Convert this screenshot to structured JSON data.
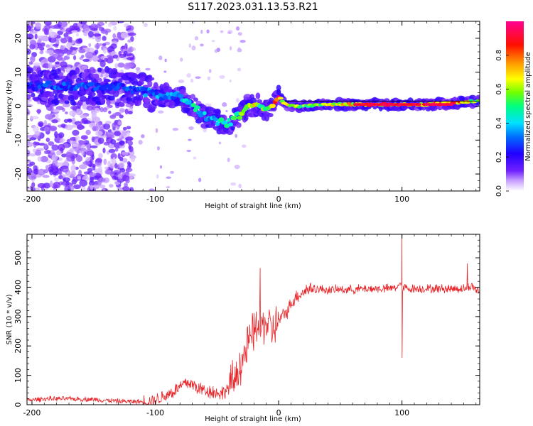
{
  "title": "S117.2023.031.13.53.R21",
  "chart_data": [
    {
      "type": "heatmap",
      "xlabel": "Height of straight line (km)",
      "ylabel": "Frequency (Hz)",
      "xlim": [
        -204,
        163
      ],
      "ylim": [
        -25,
        25
      ],
      "x_ticks": [
        "-200",
        "-100",
        "0",
        "100"
      ],
      "x_tick_values": [
        -200,
        -100,
        0,
        100
      ],
      "y_ticks": [
        "20",
        "10",
        "0",
        "-10",
        "-20"
      ],
      "y_tick_values": [
        20,
        10,
        0,
        -10,
        -20
      ],
      "colorbar": {
        "label": "Normalized spectral amplitude",
        "range": [
          0,
          1
        ],
        "ticks": [
          "0.0",
          "0.2",
          "0.4",
          "0.6",
          "0.8"
        ],
        "tick_values": [
          0,
          0.2,
          0.4,
          0.6,
          0.8
        ],
        "colormap": [
          "#ffffff",
          "#b080ff",
          "#6010ff",
          "#2000ff",
          "#00c8ff",
          "#00ff80",
          "#a0ff00",
          "#ffff00",
          "#ff8000",
          "#ff0000",
          "#ff0090"
        ]
      },
      "ridge": {
        "x": [
          -200,
          -180,
          -160,
          -140,
          -120,
          -100,
          -90,
          -80,
          -75,
          -70,
          -65,
          -60,
          -55,
          -50,
          -45,
          -40,
          -35,
          -30,
          -25,
          -20,
          -15,
          -10,
          -5,
          0,
          5,
          10,
          20,
          40,
          60,
          80,
          100,
          120,
          140,
          160
        ],
        "freq": [
          6,
          6,
          5.5,
          6,
          5,
          3.5,
          3,
          3,
          1.5,
          0,
          -1.5,
          -3,
          -3.5,
          -4.5,
          -5,
          -5,
          -3.5,
          -2,
          0,
          0.5,
          0,
          -1,
          0,
          2.5,
          1,
          0,
          0,
          0.5,
          0.5,
          0.5,
          0.5,
          0.5,
          0.8,
          1.5
        ],
        "amplitude": [
          0.25,
          0.3,
          0.3,
          0.28,
          0.3,
          0.35,
          0.35,
          0.4,
          0.45,
          0.45,
          0.45,
          0.4,
          0.4,
          0.45,
          0.45,
          0.5,
          0.5,
          0.55,
          0.6,
          0.65,
          0.55,
          0.7,
          0.8,
          0.85,
          0.7,
          0.6,
          0.6,
          0.65,
          0.75,
          0.85,
          0.8,
          0.75,
          0.9,
          0.6
        ]
      }
    },
    {
      "type": "line",
      "xlabel": "Height of straight line (km)",
      "ylabel": "SNR (10 * v/v)",
      "xlim": [
        -204,
        163
      ],
      "ylim": [
        0,
        580
      ],
      "x_ticks": [
        "-200",
        "-100",
        "0",
        "100"
      ],
      "x_tick_values": [
        -200,
        -100,
        0,
        100
      ],
      "y_ticks": [
        "0",
        "100",
        "200",
        "300",
        "400",
        "500"
      ],
      "y_tick_values": [
        0,
        100,
        200,
        300,
        400,
        500
      ],
      "color": "#e8262a",
      "series": [
        {
          "x": [
            -204,
            -190,
            -170,
            -150,
            -130,
            -110,
            -100,
            -95,
            -90,
            -85,
            -80,
            -75,
            -70,
            -65,
            -60,
            -55,
            -50,
            -45,
            -40,
            -35,
            -32,
            -30,
            -27,
            -25,
            -22,
            -20,
            -17,
            -15,
            -12,
            -10,
            -7,
            -5,
            -2,
            0,
            3,
            5,
            8,
            10,
            13,
            15,
            20,
            25,
            30,
            40,
            50,
            60,
            70,
            80,
            90,
            95,
            98,
            99,
            100,
            101,
            102,
            105,
            110,
            120,
            130,
            140,
            150,
            155,
            157,
            159,
            163
          ],
          "y": [
            15,
            20,
            20,
            18,
            12,
            10,
            15,
            25,
            35,
            45,
            60,
            75,
            70,
            55,
            50,
            45,
            40,
            40,
            60,
            90,
            130,
            150,
            175,
            200,
            230,
            250,
            270,
            255,
            275,
            280,
            260,
            255,
            270,
            285,
            300,
            310,
            325,
            345,
            360,
            370,
            385,
            395,
            395,
            390,
            392,
            392,
            395,
            395,
            395,
            400,
            405,
            420,
            400,
            390,
            400,
            395,
            395,
            395,
            395,
            395,
            395,
            400,
            405,
            395,
            385
          ]
        }
      ],
      "spikes": [
        {
          "x": -15,
          "y": 465
        },
        {
          "x": 100,
          "y": 590
        },
        {
          "x": 100,
          "y": 160
        },
        {
          "x": 153,
          "y": 480
        }
      ]
    }
  ]
}
